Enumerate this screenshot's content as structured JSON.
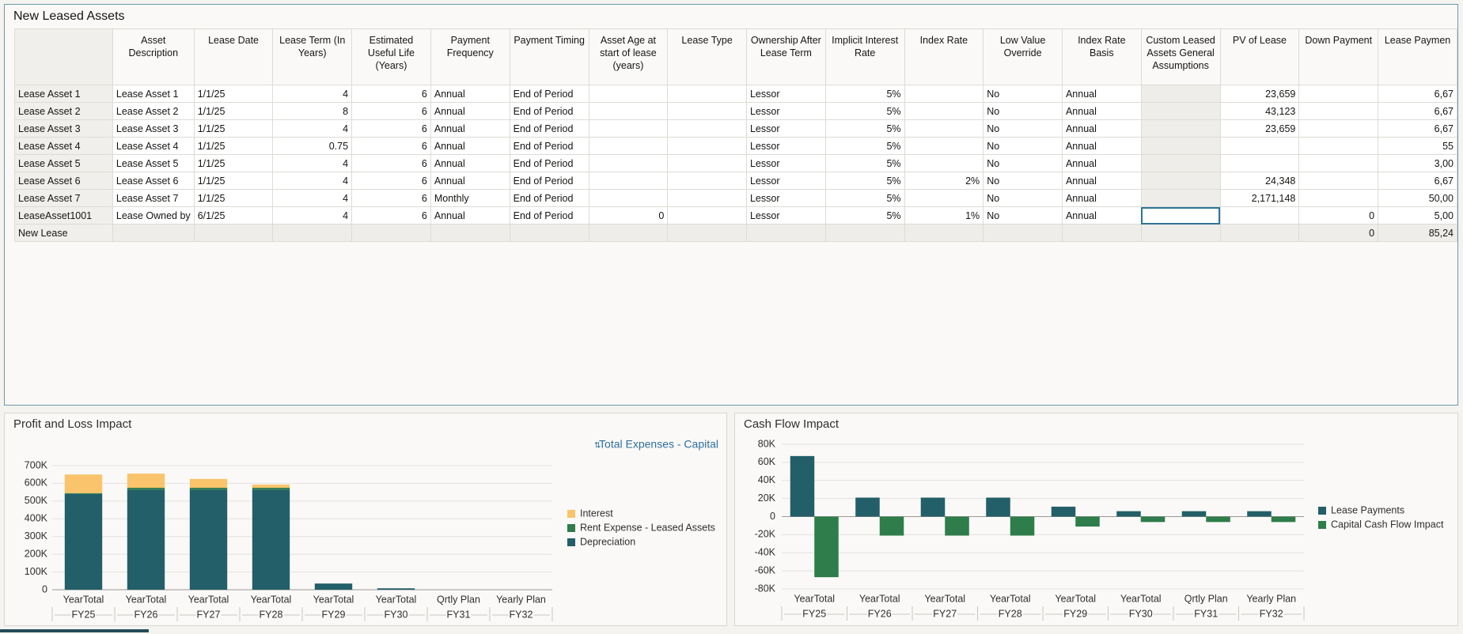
{
  "table": {
    "title": "New Leased Assets",
    "columns": [
      null,
      "Asset Description",
      "Lease Date",
      "Lease Term (In Years)",
      "Estimated Useful Life (Years)",
      "Payment Frequency",
      "Payment Timing",
      "Asset Age at start of lease (years)",
      "Lease Type",
      "Ownership After Lease Term",
      "Implicit Interest Rate",
      "Index Rate",
      "Low Value Override",
      "Index Rate Basis",
      "Custom Leased Assets General Assumptions",
      "PV of Lease",
      "Down Payment",
      "Lease Paymen"
    ],
    "rows": [
      [
        "Lease Asset 1",
        "Lease Asset 1",
        "1/1/25",
        "4",
        "6",
        "Annual",
        "End of Period",
        null,
        null,
        "Lessor",
        "5%",
        null,
        "No",
        "Annual",
        null,
        "23,659",
        null,
        "6,67"
      ],
      [
        "Lease Asset 2",
        "Lease Asset 2",
        "1/1/25",
        "8",
        "6",
        "Annual",
        "End of Period",
        null,
        null,
        "Lessor",
        "5%",
        null,
        "No",
        "Annual",
        null,
        "43,123",
        null,
        "6,67"
      ],
      [
        "Lease Asset 3",
        "Lease Asset 3",
        "1/1/25",
        "4",
        "6",
        "Annual",
        "End of Period",
        null,
        null,
        "Lessor",
        "5%",
        null,
        "No",
        "Annual",
        null,
        "23,659",
        null,
        "6,67"
      ],
      [
        "Lease Asset 4",
        "Lease Asset 4",
        "1/1/25",
        "0.75",
        "6",
        "Annual",
        "End of Period",
        null,
        null,
        "Lessor",
        "5%",
        null,
        "No",
        "Annual",
        null,
        null,
        null,
        "55"
      ],
      [
        "Lease Asset 5",
        "Lease Asset 5",
        "1/1/25",
        "4",
        "6",
        "Annual",
        "End of Period",
        null,
        null,
        "Lessor",
        "5%",
        null,
        "No",
        "Annual",
        null,
        null,
        null,
        "3,00"
      ],
      [
        "Lease Asset 6",
        "Lease Asset 6",
        "1/1/25",
        "4",
        "6",
        "Annual",
        "End of Period",
        null,
        null,
        "Lessor",
        "5%",
        "2%",
        "No",
        "Annual",
        null,
        "24,348",
        null,
        "6,67"
      ],
      [
        "Lease Asset 7",
        "Lease Asset 7",
        "1/1/25",
        "4",
        "6",
        "Monthly",
        "End of Period",
        null,
        null,
        "Lessor",
        "5%",
        null,
        "No",
        "Annual",
        null,
        "2,171,148",
        null,
        "50,00"
      ],
      [
        "LeaseAsset1001",
        "Lease Owned by",
        "6/1/25",
        "4",
        "6",
        "Annual",
        "End of Period",
        "0",
        null,
        "Lessor",
        "5%",
        "1%",
        "No",
        "Annual",
        null,
        null,
        "0",
        "5,00"
      ],
      [
        "New Lease",
        null,
        null,
        null,
        null,
        null,
        null,
        null,
        null,
        null,
        null,
        null,
        null,
        null,
        null,
        null,
        "0",
        "85,24"
      ]
    ]
  },
  "charts": [
    {
      "type": "stacked_bar",
      "title": "Profit and Loss Impact",
      "link": "Total Expenses - Capital",
      "categories": [
        "YearTotal",
        "YearTotal",
        "YearTotal",
        "YearTotal",
        "YearTotal",
        "YearTotal",
        "Qrtly Plan",
        "Yearly Plan"
      ],
      "groups": [
        "FY25",
        "FY26",
        "FY27",
        "FY28",
        "FY29",
        "FY30",
        "FY31",
        "FY32"
      ],
      "series": [
        {
          "name": "Depreciation",
          "color": "#235f68",
          "values": [
            540000,
            565000,
            565000,
            565000,
            35000,
            8000,
            0,
            0
          ]
        },
        {
          "name": "Rent Expense - Leased Assets",
          "color": "#2e7d4a",
          "values": [
            5000,
            10000,
            10000,
            10000,
            0,
            0,
            0,
            0
          ]
        },
        {
          "name": "Interest",
          "color": "#f9c46b",
          "values": [
            105000,
            80000,
            50000,
            18000,
            0,
            0,
            0,
            0
          ]
        }
      ],
      "ylim": [
        0,
        700000
      ],
      "yticks": [
        0,
        {
          "value": 100000,
          "label": "100K"
        },
        {
          "value": 200000,
          "label": "200K"
        },
        {
          "value": 300000,
          "label": "300K"
        },
        {
          "value": 400000,
          "label": "400K"
        },
        {
          "value": 500000,
          "label": "500K"
        },
        {
          "value": 600000,
          "label": "600K"
        },
        {
          "value": 700000,
          "label": "700K"
        }
      ],
      "grid": true,
      "legend": "right"
    },
    {
      "type": "bar",
      "title": "Cash Flow Impact",
      "categories": [
        "YearTotal",
        "YearTotal",
        "YearTotal",
        "YearTotal",
        "YearTotal",
        "YearTotal",
        "Qrtly Plan",
        "Yearly Plan"
      ],
      "groups": [
        "FY25",
        "FY26",
        "FY27",
        "FY28",
        "FY29",
        "FY30",
        "FY31",
        "FY32"
      ],
      "series": [
        {
          "name": "Lease Payments",
          "color": "#235f68",
          "values": [
            67000,
            21000,
            21000,
            21000,
            11000,
            6000,
            6000,
            6000
          ]
        },
        {
          "name": "Capital Cash Flow Impact",
          "color": "#2e7d4a",
          "values": [
            -67000,
            -21000,
            -21000,
            -21000,
            -11000,
            -6000,
            -6000,
            -6000
          ]
        }
      ],
      "ylim": [
        -80000,
        80000
      ],
      "yticks": [
        {
          "value": -80000,
          "label": "-80K"
        },
        {
          "value": -60000,
          "label": "-60K"
        },
        {
          "value": -40000,
          "label": "-40K"
        },
        {
          "value": -20000,
          "label": "-20K"
        },
        0,
        {
          "value": 20000,
          "label": "20K"
        },
        {
          "value": 40000,
          "label": "40K"
        },
        {
          "value": 60000,
          "label": "60K"
        },
        {
          "value": 80000,
          "label": "80K"
        }
      ],
      "grid": true,
      "legend": "right"
    }
  ]
}
